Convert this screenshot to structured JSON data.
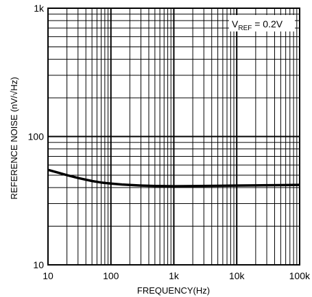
{
  "chart_data": {
    "type": "line",
    "title": "",
    "xlabel": "FREQUENCY(Hz)",
    "ylabel": "REFERENCE NOISE (nV/√Hz)",
    "x_scale": "log",
    "y_scale": "log",
    "xlim": [
      10,
      100000
    ],
    "ylim": [
      10,
      1000
    ],
    "grid": true,
    "x_ticks": [
      {
        "value": 10,
        "label": "10"
      },
      {
        "value": 100,
        "label": "100"
      },
      {
        "value": 1000,
        "label": "1k"
      },
      {
        "value": 10000,
        "label": "10k"
      },
      {
        "value": 100000,
        "label": "100k"
      }
    ],
    "y_ticks": [
      {
        "value": 10,
        "label": "10"
      },
      {
        "value": 100,
        "label": "100"
      },
      {
        "value": 1000,
        "label": "1k"
      }
    ],
    "annotation": {
      "main": "V",
      "sub": "REF",
      "rest": " = 0.2V",
      "position": "top-right"
    },
    "series": [
      {
        "x": [
          10,
          15,
          20,
          30,
          50,
          70,
          100,
          150,
          200,
          300,
          500,
          700,
          1000,
          2000,
          5000,
          10000,
          20000,
          50000,
          100000
        ],
        "y": [
          55,
          52,
          50,
          47.5,
          45,
          43.8,
          43,
          42.3,
          41.9,
          41.5,
          41.2,
          41.1,
          41,
          41.1,
          41.3,
          41.5,
          41.6,
          41.8,
          42
        ]
      }
    ]
  }
}
